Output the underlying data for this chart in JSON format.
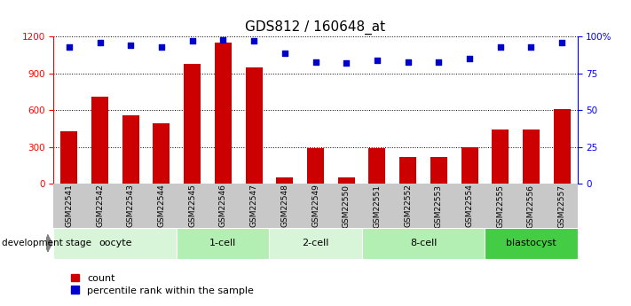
{
  "title": "GDS812 / 160648_at",
  "samples": [
    "GSM22541",
    "GSM22542",
    "GSM22543",
    "GSM22544",
    "GSM22545",
    "GSM22546",
    "GSM22547",
    "GSM22548",
    "GSM22549",
    "GSM22550",
    "GSM22551",
    "GSM22552",
    "GSM22553",
    "GSM22554",
    "GSM22555",
    "GSM22556",
    "GSM22557"
  ],
  "counts": [
    430,
    710,
    560,
    490,
    980,
    1150,
    950,
    50,
    290,
    50,
    290,
    220,
    220,
    300,
    440,
    440,
    610
  ],
  "percentiles": [
    93,
    96,
    94,
    93,
    97,
    98,
    97,
    89,
    83,
    82,
    84,
    83,
    83,
    85,
    93,
    93,
    96
  ],
  "bar_color": "#cc0000",
  "dot_color": "#0000cc",
  "ylim_left": [
    0,
    1200
  ],
  "ylim_right": [
    0,
    100
  ],
  "yticks_left": [
    0,
    300,
    600,
    900,
    1200
  ],
  "yticks_right": [
    0,
    25,
    50,
    75,
    100
  ],
  "yticklabels_right": [
    "0",
    "25",
    "50",
    "75",
    "100%"
  ],
  "groups": [
    {
      "label": "oocyte",
      "start": 0,
      "end": 4,
      "color": "#d9f5d9"
    },
    {
      "label": "1-cell",
      "start": 4,
      "end": 7,
      "color": "#b3eeb3"
    },
    {
      "label": "2-cell",
      "start": 7,
      "end": 10,
      "color": "#d9f5d9"
    },
    {
      "label": "8-cell",
      "start": 10,
      "end": 14,
      "color": "#b3eeb3"
    },
    {
      "label": "blastocyst",
      "start": 14,
      "end": 17,
      "color": "#44cc44"
    }
  ],
  "dev_stage_label": "development stage",
  "legend_count_label": "count",
  "legend_pct_label": "percentile rank within the sample",
  "bar_color_hex": "#cc0000",
  "dot_color_hex": "#0000cc",
  "tick_bg_color": "#c8c8c8",
  "title_fontsize": 11,
  "tick_fontsize": 7.5,
  "group_fontsize": 8
}
